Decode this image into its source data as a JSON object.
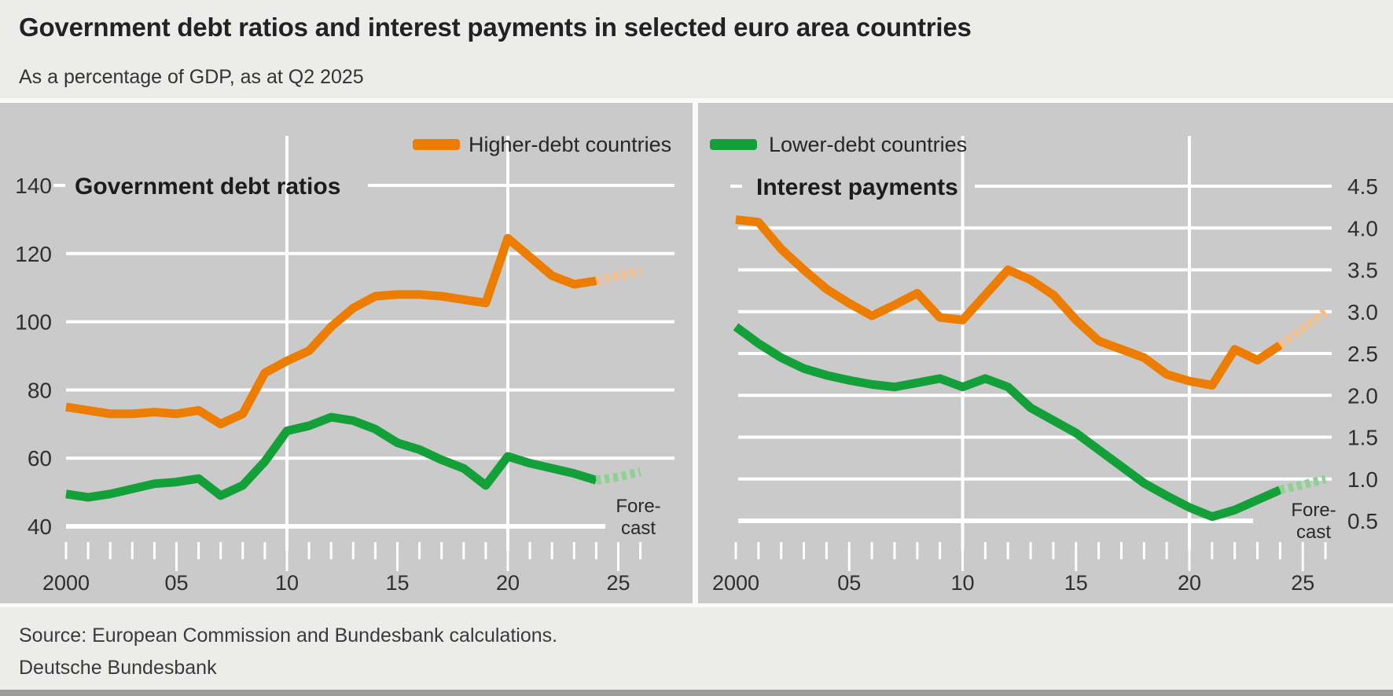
{
  "header": {
    "title": "Government debt ratios and interest payments in selected euro area countries",
    "subtitle": "As a percentage of GDP, as at Q2 2025"
  },
  "legend": {
    "items": [
      {
        "label": "Higher-debt countries",
        "color_key": "higher_debt"
      },
      {
        "label": "Lower-debt countries",
        "color_key": "lower_debt"
      }
    ]
  },
  "forecast_label": [
    "Fore-",
    "cast"
  ],
  "footer": {
    "source": "Source: European Commission and Bundesbank calculations.",
    "publisher": "Deutsche Bundesbank"
  },
  "colors": {
    "page_background": "#ECECEA",
    "band_background": "#CACACA",
    "gridline": "#FFFFFF",
    "text": "#2F2F2F",
    "title_text": "#1C1C1C",
    "higher_debt": "#EC7D00",
    "higher_debt_forecast": "#F7BF85",
    "lower_debt": "#13A038",
    "lower_debt_forecast": "#8FD195",
    "bottom_bar": "#9C9C9C"
  },
  "chart_data": [
    {
      "type": "line",
      "title": "Government debt ratios",
      "y_axis_side": "left",
      "ylim": [
        40,
        140
      ],
      "ytick_labels": [
        "140",
        "120",
        "100",
        "80",
        "60",
        "40"
      ],
      "xtick_labels": [
        "2000",
        "05",
        "10",
        "15",
        "20",
        "25"
      ],
      "xtick_years": [
        2000,
        2005,
        2010,
        2015,
        2020,
        2025
      ],
      "x_range": [
        2000,
        2026
      ],
      "grid": true,
      "vgrid_years": [
        2010,
        2020
      ],
      "legend_position": "top-center",
      "years": [
        2000,
        2001,
        2002,
        2003,
        2004,
        2005,
        2006,
        2007,
        2008,
        2009,
        2010,
        2011,
        2012,
        2013,
        2014,
        2015,
        2016,
        2017,
        2018,
        2019,
        2020,
        2021,
        2022,
        2023,
        2024
      ],
      "series": [
        {
          "name": "Higher-debt countries",
          "color_key": "higher_debt",
          "values": [
            75,
            74,
            73,
            73,
            73.5,
            73,
            74,
            70,
            73,
            85,
            88.5,
            91.5,
            98.5,
            104,
            107.5,
            108,
            108,
            107.5,
            106.5,
            105.5,
            124.5,
            119,
            113.5,
            111,
            112
          ],
          "forecast_years": [
            2024,
            2025,
            2026
          ],
          "forecast_values": [
            112,
            113.5,
            115
          ]
        },
        {
          "name": "Lower-debt countries",
          "color_key": "lower_debt",
          "values": [
            49.5,
            48.5,
            49.5,
            51,
            52.5,
            53,
            54,
            49,
            52,
            59,
            68,
            69.5,
            72,
            71,
            68.5,
            64.5,
            62.5,
            59.5,
            57,
            52,
            60.5,
            58.5,
            57,
            55.5,
            53.5
          ],
          "forecast_years": [
            2024,
            2025,
            2026
          ],
          "forecast_values": [
            53.5,
            54.5,
            56
          ]
        }
      ]
    },
    {
      "type": "line",
      "title": "Interest payments",
      "y_axis_side": "right",
      "ylim": [
        0.5,
        4.5
      ],
      "ytick_labels": [
        "4.5",
        "4.0",
        "3.5",
        "3.0",
        "2.5",
        "2.0",
        "1.5",
        "1.0",
        "0.5"
      ],
      "xtick_labels": [
        "2000",
        "05",
        "10",
        "15",
        "20",
        "25"
      ],
      "xtick_years": [
        2000,
        2005,
        2010,
        2015,
        2020,
        2025
      ],
      "x_range": [
        2000,
        2026
      ],
      "grid": true,
      "vgrid_years": [
        2010,
        2020
      ],
      "legend_position": "top-center",
      "years": [
        2000,
        2001,
        2002,
        2003,
        2004,
        2005,
        2006,
        2007,
        2008,
        2009,
        2010,
        2011,
        2012,
        2013,
        2014,
        2015,
        2016,
        2017,
        2018,
        2019,
        2020,
        2021,
        2022,
        2023,
        2024
      ],
      "series": [
        {
          "name": "Higher-debt countries",
          "color_key": "higher_debt",
          "values": [
            4.1,
            4.07,
            3.75,
            3.5,
            3.27,
            3.1,
            2.95,
            3.08,
            3.22,
            2.93,
            2.9,
            3.2,
            3.5,
            3.38,
            3.2,
            2.9,
            2.65,
            2.55,
            2.45,
            2.25,
            2.17,
            2.12,
            2.55,
            2.42,
            2.6
          ],
          "forecast_years": [
            2024,
            2025,
            2026
          ],
          "forecast_values": [
            2.6,
            2.8,
            3.0
          ]
        },
        {
          "name": "Lower-debt countries",
          "color_key": "lower_debt",
          "values": [
            2.82,
            2.62,
            2.45,
            2.32,
            2.24,
            2.18,
            2.13,
            2.1,
            2.15,
            2.2,
            2.1,
            2.2,
            2.1,
            1.85,
            1.7,
            1.55,
            1.35,
            1.15,
            0.95,
            0.8,
            0.66,
            0.55,
            0.63,
            0.75,
            0.87
          ],
          "forecast_years": [
            2024,
            2025,
            2026
          ],
          "forecast_values": [
            0.87,
            0.93,
            1.0
          ]
        }
      ]
    }
  ]
}
